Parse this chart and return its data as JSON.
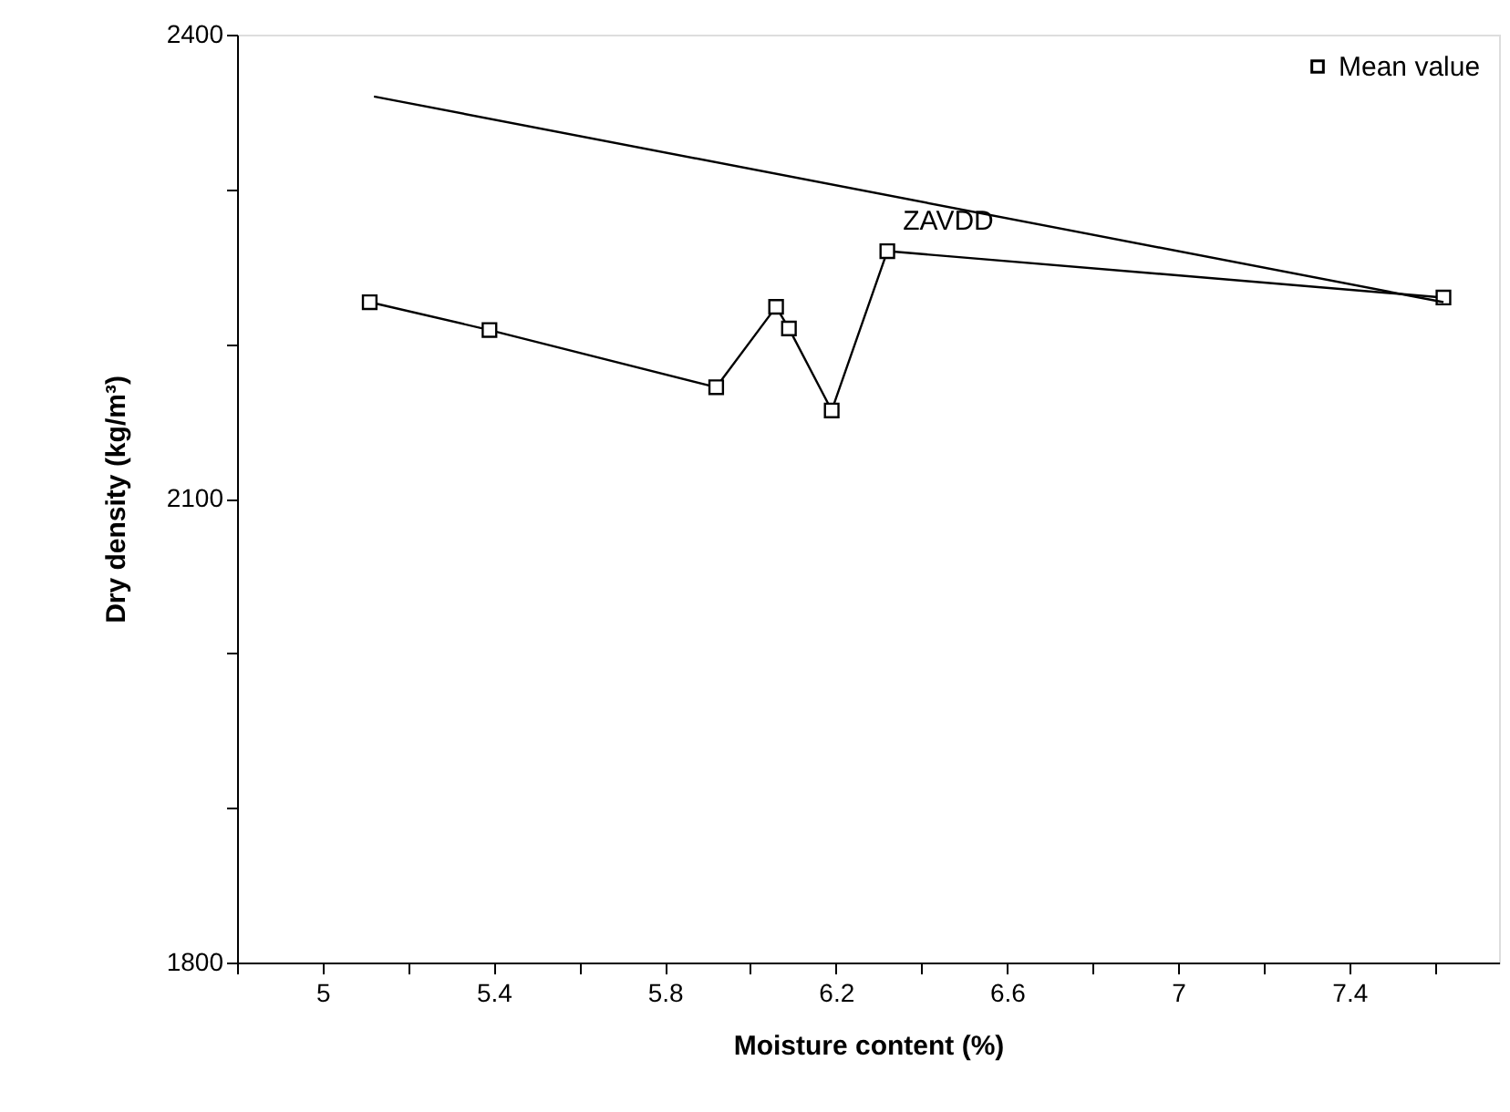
{
  "chart_data": {
    "type": "line",
    "xlabel": "Moisture content (%)",
    "ylabel": "Dry density (kg/m³)",
    "xlim": [
      4.8,
      7.75
    ],
    "xticks": [
      {
        "value": 4.8,
        "label": null
      },
      5,
      {
        "value": 5.2,
        "label": null
      },
      5.4,
      {
        "value": 5.6,
        "label": null
      },
      5.8,
      {
        "value": 6.0,
        "label": null
      },
      6.2,
      {
        "value": 6.4,
        "label": null
      },
      6.6,
      {
        "value": 6.8,
        "label": null
      },
      7,
      {
        "value": 7.2,
        "label": null
      },
      7.4,
      {
        "value": 7.6,
        "label": null
      }
    ],
    "ylim": [
      1800,
      2400
    ],
    "yticks": [
      1800,
      {
        "value": 1900,
        "label": null
      },
      {
        "value": 2000,
        "label": null
      },
      2100,
      {
        "value": 2200,
        "label": null
      },
      {
        "value": 2300,
        "label": null
      },
      2400
    ],
    "series": [
      {
        "name": "Mean value",
        "color": "#000000",
        "marker": "square",
        "x": [
          5.11,
          5.39,
          5.92,
          6.06,
          6.09,
          6.19,
          6.32,
          7.62
        ],
        "values": [
          2227,
          2209,
          2172,
          2224,
          2210,
          2157,
          2260,
          2230
        ]
      },
      {
        "color": "#000000",
        "marker": "none",
        "x": [
          5.12,
          7.62
        ],
        "values": [
          2360,
          2227
        ]
      }
    ],
    "annotations": [
      "ZAVDD"
    ],
    "legend": "top right",
    "grid": false,
    "line_style": "solid"
  }
}
